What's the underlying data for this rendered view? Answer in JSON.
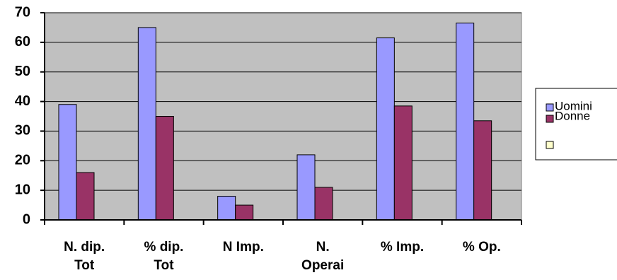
{
  "chart_data": {
    "type": "bar",
    "categories": [
      "N. dip.\nTot",
      "% dip.\nTot",
      "N Imp.",
      "N.\nOperai",
      "% Imp.",
      "% Op."
    ],
    "series": [
      {
        "name": "Uomini",
        "color": "#9999ff",
        "values": [
          39,
          65,
          8,
          22,
          61.5,
          66.5
        ]
      },
      {
        "name": "Donne",
        "color": "#993366",
        "values": [
          16,
          35,
          5,
          11,
          38.5,
          33.5
        ]
      }
    ],
    "ylim": [
      0,
      70
    ],
    "yticks": [
      0,
      10,
      20,
      30,
      40,
      50,
      60,
      70
    ],
    "grid": true,
    "plot_background": "#c0c0c0",
    "legend": "right"
  }
}
